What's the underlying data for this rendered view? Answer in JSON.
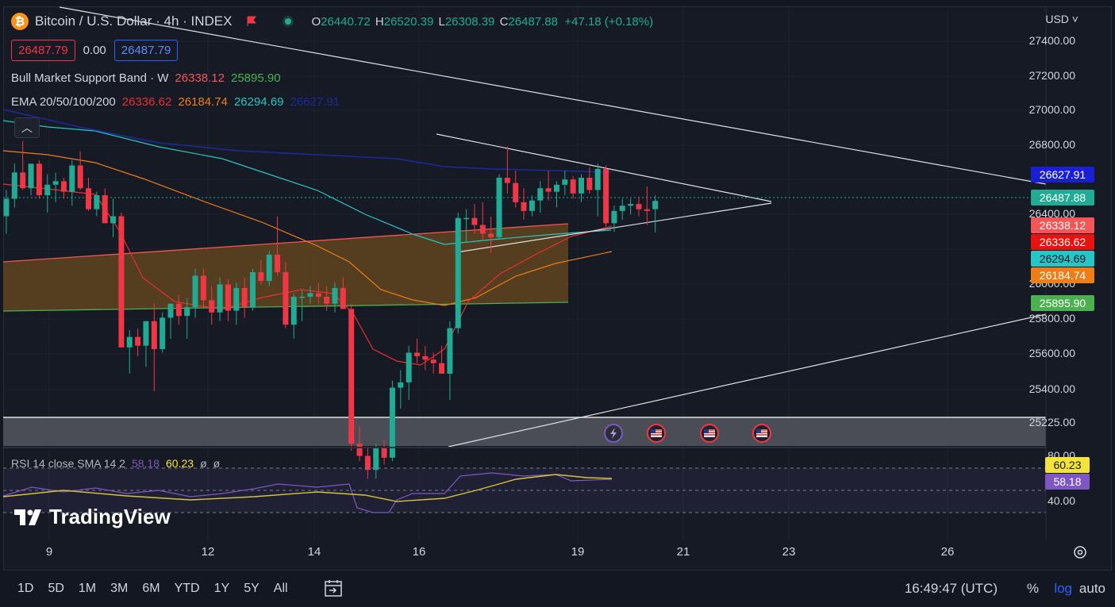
{
  "header": {
    "symbol_icon": "bitcoin-icon",
    "title": "Bitcoin / U.S. Dollar · 4h · INDEX",
    "open_label": "O",
    "open": "26440.72",
    "high_label": "H",
    "high": "26520.39",
    "low_label": "L",
    "low": "26308.39",
    "close_label": "C",
    "close": "26487.88",
    "change": "+47.18 (+0.18%)",
    "sell_price": "26487.79",
    "spread": "0.00",
    "buy_price": "26487.79",
    "currency": "USD"
  },
  "indicators": {
    "bmsb_name": "Bull Market Support Band · W",
    "bmsb_v1": "26338.12",
    "bmsb_v2": "25895.90",
    "ema_name": "EMA 20/50/100/200",
    "ema_v1": "26336.62",
    "ema_v2": "26184.74",
    "ema_v3": "26294.69",
    "ema_v4": "26627.91",
    "rsi_name": "RSI 14 close SMA 14 2",
    "rsi_v1": "58.18",
    "rsi_v2": "60.23",
    "rsi_v3": "ø",
    "rsi_v4": "ø"
  },
  "colors": {
    "up": "#22ab94",
    "down": "#f23645",
    "ema20": "#e8302f",
    "ema50": "#ef7d16",
    "ema100": "#26c6c6",
    "ema200": "#1a2a9c",
    "band": "#6b4a1e",
    "rsi": "#7e57c2",
    "rsi_ma": "#d6c33a"
  },
  "price_axis": {
    "ticks": [
      "27400.00",
      "27200.00",
      "27000.00",
      "26800.00",
      "26400.00",
      "26000.00",
      "25800.00",
      "25600.00",
      "25400.00",
      "25225.00"
    ],
    "tags": [
      {
        "text": "26627.91",
        "color": "#1a1fd6"
      },
      {
        "text": "26487.88",
        "color": "#22ab94"
      },
      {
        "text": "26338.12",
        "color": "#f25656"
      },
      {
        "text": "26336.62",
        "color": "#e8120f"
      },
      {
        "text": "26294.69",
        "color": "#26c6c6",
        "text_color": "#131722"
      },
      {
        "text": "26184.74",
        "color": "#ef7d16"
      },
      {
        "text": "25895.90",
        "color": "#4caf50"
      }
    ]
  },
  "rsi_axis": {
    "ticks": [
      "80.00",
      "40.00"
    ],
    "tags": [
      {
        "text": "60.23",
        "color": "#f4e33a"
      },
      {
        "text": "58.18",
        "color": "#7e57c2"
      }
    ]
  },
  "time_axis": {
    "labels": [
      "9",
      "12",
      "14",
      "16",
      "19",
      "21",
      "23",
      "26"
    ]
  },
  "events": [
    "lightning-icon",
    "us-flag-icon",
    "us-flag-icon",
    "us-flag-icon"
  ],
  "brand": "TradingView",
  "bottom": {
    "ranges": [
      "1D",
      "5D",
      "1M",
      "3M",
      "6M",
      "YTD",
      "1Y",
      "5Y",
      "All"
    ],
    "time": "16:49:47 (UTC)",
    "percent": "%",
    "log": "log",
    "auto": "auto"
  }
}
